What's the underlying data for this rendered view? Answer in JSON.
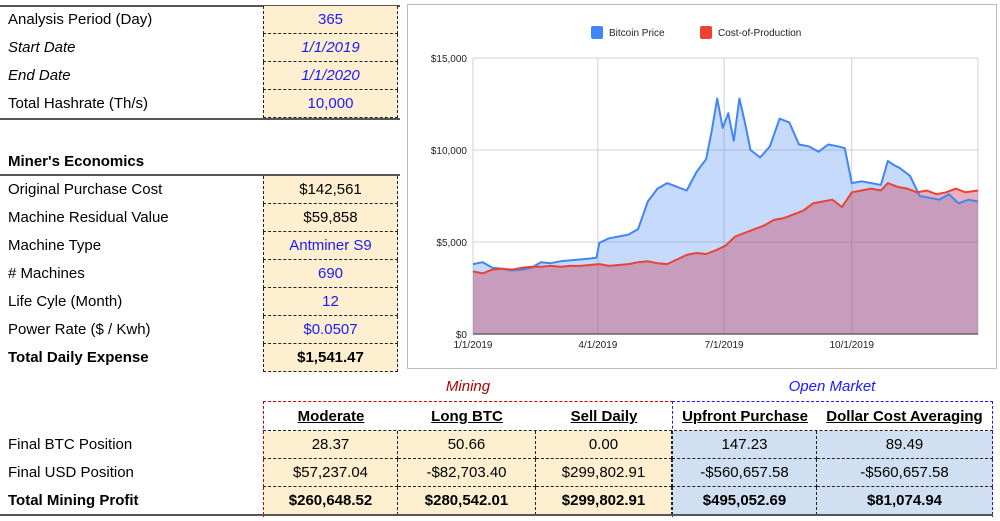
{
  "inputs": {
    "rows": [
      {
        "label": "Analysis Period (Day)",
        "value": "365"
      },
      {
        "label": "Start Date",
        "value": "1/1/2019"
      },
      {
        "label": "End Date",
        "value": "1/1/2020"
      },
      {
        "label": "Total Hashrate (Th/s)",
        "value": "10,000"
      }
    ]
  },
  "economics": {
    "title": "Miner's Economics",
    "rows": [
      {
        "label": "Original Purchase Cost",
        "value": "$142,561"
      },
      {
        "label": "Machine Residual Value",
        "value": "$59,858"
      },
      {
        "label": "Machine Type",
        "value": "Antminer S9"
      },
      {
        "label": "# Machines",
        "value": "690"
      },
      {
        "label": "Life Cyle (Month)",
        "value": "12"
      },
      {
        "label": "Power Rate ($ / Kwh)",
        "value": "$0.0507"
      },
      {
        "label": "Total Daily Expense",
        "value": "$1,541.47"
      }
    ]
  },
  "results": {
    "mining_title": "Mining",
    "open_market_title": "Open Market",
    "columns": [
      "Moderate",
      "Long BTC",
      "Sell Daily",
      "Upfront Purchase",
      "Dollar Cost Averaging"
    ],
    "rows": [
      {
        "label": "Final BTC Position",
        "values": [
          "28.37",
          "50.66",
          "0.00",
          "147.23",
          "89.49"
        ]
      },
      {
        "label": "Final USD Position",
        "values": [
          "$57,237.04",
          "-$82,703.40",
          "$299,802.91",
          "-$560,657.58",
          "-$560,657.58"
        ]
      },
      {
        "label": "Total Mining Profit",
        "values": [
          "$260,648.52",
          "$280,542.01",
          "$299,802.91",
          "$495,052.69",
          "$81,074.94"
        ]
      }
    ]
  },
  "colors": {
    "bitcoin": "#4285f4",
    "cost": "#ea4335",
    "input_text": "#1a1aff",
    "mining_accent": "#b00000",
    "open_market_accent": "#1a1aff"
  },
  "chart_data": {
    "type": "area",
    "title": "",
    "xlabel": "",
    "ylabel": "",
    "ylim": [
      0,
      15000
    ],
    "y_ticks": [
      "$15,000",
      "$10,000",
      "$5,000",
      "$0"
    ],
    "y_tick_values": [
      15000,
      10000,
      5000,
      0
    ],
    "x_ticks": [
      "1/1/2019",
      "4/1/2019",
      "7/1/2019",
      "10/1/2019"
    ],
    "x_tick_days": [
      0,
      90,
      181,
      273
    ],
    "x_range_days": [
      0,
      364
    ],
    "grid": true,
    "legend": "top",
    "series": [
      {
        "name": "Bitcoin Price",
        "days": [
          0,
          7,
          14,
          21,
          28,
          35,
          42,
          49,
          56,
          63,
          70,
          77,
          84,
          89,
          91,
          98,
          105,
          112,
          119,
          126,
          133,
          140,
          147,
          154,
          161,
          168,
          172,
          176,
          180,
          184,
          188,
          192,
          196,
          200,
          207,
          214,
          221,
          228,
          235,
          242,
          249,
          256,
          263,
          268,
          273,
          280,
          287,
          294,
          299,
          303,
          308,
          315,
          322,
          329,
          336,
          343,
          350,
          357,
          364
        ],
        "values": [
          3800,
          3900,
          3600,
          3550,
          3450,
          3500,
          3600,
          3900,
          3850,
          3950,
          4000,
          4050,
          4100,
          4150,
          4950,
          5200,
          5300,
          5400,
          5700,
          7200,
          7900,
          8200,
          8000,
          7800,
          8800,
          9500,
          11000,
          12800,
          11200,
          12000,
          10500,
          12800,
          11500,
          10000,
          9600,
          10200,
          11700,
          11500,
          10300,
          10200,
          9900,
          10300,
          10200,
          10100,
          8200,
          8300,
          8200,
          8100,
          9400,
          9200,
          9000,
          8600,
          7500,
          7400,
          7300,
          7600,
          7100,
          7300,
          7200
        ]
      },
      {
        "name": "Cost-of-Production",
        "days": [
          0,
          7,
          14,
          21,
          28,
          35,
          42,
          49,
          56,
          63,
          70,
          77,
          84,
          91,
          98,
          105,
          112,
          119,
          126,
          133,
          140,
          147,
          154,
          161,
          168,
          175,
          182,
          189,
          196,
          203,
          210,
          217,
          224,
          231,
          238,
          245,
          252,
          259,
          266,
          273,
          280,
          287,
          294,
          299,
          306,
          313,
          320,
          327,
          334,
          341,
          348,
          355,
          364
        ],
        "values": [
          3400,
          3300,
          3500,
          3550,
          3500,
          3600,
          3650,
          3650,
          3700,
          3650,
          3700,
          3700,
          3750,
          3800,
          3700,
          3750,
          3800,
          3900,
          3950,
          3850,
          3800,
          4050,
          4300,
          4400,
          4350,
          4550,
          4800,
          5300,
          5500,
          5700,
          5900,
          6200,
          6300,
          6500,
          6700,
          7100,
          7200,
          7300,
          6900,
          7700,
          7800,
          7900,
          7800,
          8200,
          8000,
          7900,
          7700,
          7800,
          7600,
          7700,
          7900,
          7700,
          7800
        ]
      }
    ]
  }
}
